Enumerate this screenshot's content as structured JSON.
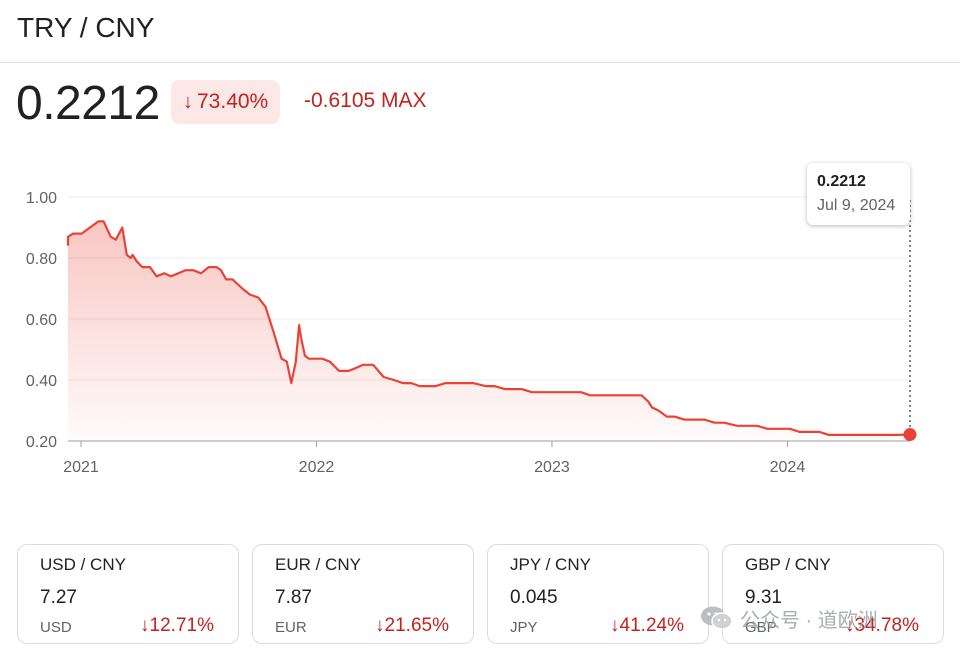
{
  "header": {
    "title": "TRY / CNY"
  },
  "summary": {
    "price": "0.2212",
    "pct_change": "73.40%",
    "change_text": "-0.6105 MAX"
  },
  "tooltip": {
    "value": "0.2212",
    "date": "Jul 9, 2024"
  },
  "colors": {
    "negative": "#c5221f",
    "line": "#ea4335",
    "badge_bg": "#fce8e6",
    "grid": "#ececec"
  },
  "chart_data": {
    "type": "area",
    "y_ticks": [
      "1.00",
      "0.80",
      "0.60",
      "0.40",
      "0.20"
    ],
    "x_ticks": [
      "2021",
      "2022",
      "2023",
      "2024"
    ],
    "ylim": [
      0.2,
      1.0
    ],
    "xlim": [
      "2021-01-01",
      "2024-07-09"
    ],
    "grid": true,
    "series": [
      {
        "x": [
          "2020-11-15",
          "2020-11-25",
          "2020-12-08",
          "2020-12-20",
          "2021-01-02",
          "2021-01-15",
          "2021-01-28",
          "2021-02-05",
          "2021-02-16",
          "2021-02-24",
          "2021-03-06",
          "2021-03-13",
          "2021-03-19",
          "2021-03-22",
          "2021-03-28",
          "2021-04-06",
          "2021-04-18",
          "2021-04-28",
          "2021-05-10",
          "2021-05-20",
          "2021-06-01",
          "2021-06-12",
          "2021-06-24",
          "2021-07-06",
          "2021-07-18",
          "2021-07-30",
          "2021-08-06",
          "2021-08-14",
          "2021-08-24",
          "2021-09-08",
          "2021-09-20",
          "2021-10-03",
          "2021-10-14",
          "2021-10-26",
          "2021-11-08",
          "2021-11-16",
          "2021-11-23",
          "2021-11-30",
          "2021-12-05",
          "2021-12-08",
          "2021-12-14",
          "2021-12-20",
          "2021-12-28",
          "2022-01-10",
          "2022-01-22",
          "2022-02-05",
          "2022-02-20",
          "2022-03-04",
          "2022-03-14",
          "2022-03-30",
          "2022-04-15",
          "2022-05-01",
          "2022-05-15",
          "2022-05-28",
          "2022-06-10",
          "2022-06-25",
          "2022-07-05",
          "2022-07-20",
          "2022-08-01",
          "2022-08-15",
          "2022-09-01",
          "2022-09-20",
          "2022-10-04",
          "2022-10-20",
          "2022-11-01",
          "2022-11-15",
          "2022-12-01",
          "2022-12-15",
          "2023-01-01",
          "2023-01-15",
          "2023-02-01",
          "2023-02-15",
          "2023-03-01",
          "2023-03-20",
          "2023-04-05",
          "2023-04-20",
          "2023-05-05",
          "2023-05-20",
          "2023-05-30",
          "2023-06-05",
          "2023-06-15",
          "2023-06-28",
          "2023-07-10",
          "2023-07-25",
          "2023-08-10",
          "2023-08-25",
          "2023-09-10",
          "2023-09-25",
          "2023-10-15",
          "2023-11-01",
          "2023-11-15",
          "2023-12-01",
          "2023-12-20",
          "2024-01-05",
          "2024-01-20",
          "2024-02-05",
          "2024-02-20",
          "2024-03-05",
          "2024-03-20",
          "2024-04-05",
          "2024-04-20",
          "2024-05-05",
          "2024-05-20",
          "2024-06-05",
          "2024-06-20",
          "2024-07-09"
        ],
        "values": [
          0.84,
          0.86,
          0.87,
          0.88,
          0.88,
          0.9,
          0.92,
          0.92,
          0.87,
          0.86,
          0.9,
          0.81,
          0.8,
          0.81,
          0.79,
          0.77,
          0.77,
          0.74,
          0.75,
          0.74,
          0.75,
          0.76,
          0.76,
          0.75,
          0.77,
          0.77,
          0.76,
          0.73,
          0.73,
          0.7,
          0.68,
          0.67,
          0.64,
          0.56,
          0.47,
          0.46,
          0.39,
          0.46,
          0.58,
          0.54,
          0.48,
          0.47,
          0.47,
          0.47,
          0.46,
          0.43,
          0.43,
          0.44,
          0.45,
          0.45,
          0.41,
          0.4,
          0.39,
          0.39,
          0.38,
          0.38,
          0.38,
          0.39,
          0.39,
          0.39,
          0.39,
          0.38,
          0.38,
          0.37,
          0.37,
          0.37,
          0.36,
          0.36,
          0.36,
          0.36,
          0.36,
          0.36,
          0.35,
          0.35,
          0.35,
          0.35,
          0.35,
          0.35,
          0.33,
          0.31,
          0.3,
          0.28,
          0.28,
          0.27,
          0.27,
          0.27,
          0.26,
          0.26,
          0.25,
          0.25,
          0.25,
          0.24,
          0.24,
          0.24,
          0.23,
          0.23,
          0.23,
          0.22,
          0.22,
          0.22,
          0.22,
          0.22,
          0.22,
          0.22,
          0.22,
          0.2212
        ]
      }
    ]
  },
  "cards": [
    {
      "title": "USD / CNY",
      "value": "7.27",
      "currency": "USD",
      "pct": "12.71%"
    },
    {
      "title": "EUR / CNY",
      "value": "7.87",
      "currency": "EUR",
      "pct": "21.65%"
    },
    {
      "title": "JPY / CNY",
      "value": "0.045",
      "currency": "JPY",
      "pct": "41.24%"
    },
    {
      "title": "GBP / CNY",
      "value": "9.31",
      "currency": "GBP",
      "pct": "34.78%"
    }
  ],
  "watermark": {
    "text": "公众号 · 道欧洲",
    "icon": "wechat-icon"
  }
}
